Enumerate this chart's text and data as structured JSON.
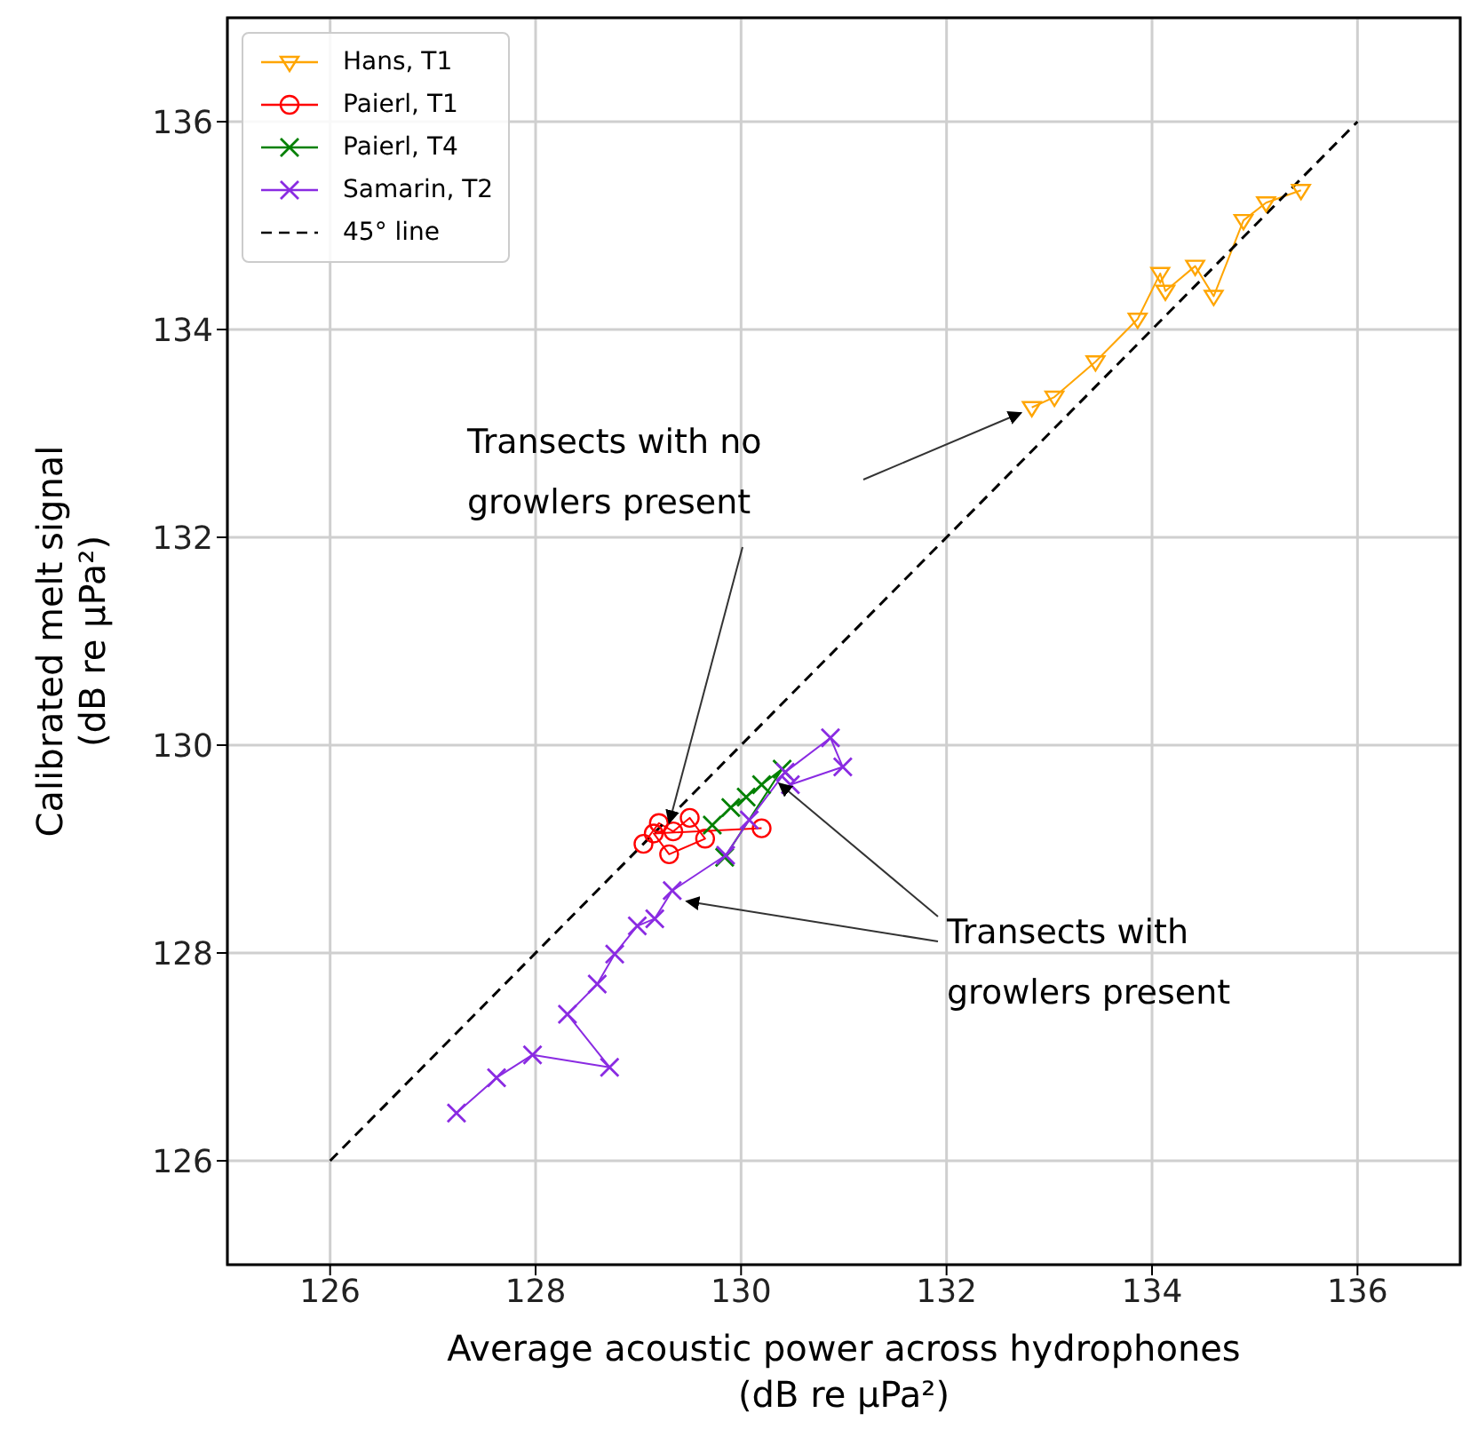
{
  "chart_data": {
    "type": "line",
    "xlabel": "Average acoustic power across hydrophones\n(dB re μPa²)",
    "ylabel": "Calibrated melt signal\n(dB re μPa²)",
    "xlim": [
      125,
      137
    ],
    "ylim": [
      125,
      137
    ],
    "xticks": [
      126,
      128,
      130,
      132,
      134,
      136
    ],
    "yticks": [
      126,
      128,
      130,
      132,
      134,
      136
    ],
    "grid": true,
    "legend": "top left",
    "series": [
      {
        "name": "Hans, T1",
        "color": "#ffa500",
        "marker": "triangle",
        "x": [
          132.83,
          133.05,
          133.45,
          133.86,
          134.08,
          134.13,
          134.42,
          134.6,
          134.89,
          135.11,
          135.45
        ],
        "values": [
          133.25,
          133.35,
          133.69,
          134.1,
          134.54,
          134.37,
          134.61,
          134.32,
          135.05,
          135.22,
          135.34
        ]
      },
      {
        "name": "Paierl, T1",
        "color": "#ff0000",
        "marker": "circle",
        "x": [
          129.05,
          129.2,
          129.34,
          129.5,
          129.65,
          129.3,
          129.15,
          130.2
        ],
        "values": [
          129.05,
          129.25,
          129.17,
          129.3,
          129.1,
          128.95,
          129.15,
          129.2
        ]
      },
      {
        "name": "Paierl, T4",
        "color": "#008000",
        "marker": "cross",
        "x": [
          129.72,
          129.9,
          130.05,
          130.2,
          130.4,
          129.84
        ],
        "values": [
          129.23,
          129.4,
          129.5,
          129.62,
          129.77,
          128.92
        ]
      },
      {
        "name": "Samarin, T2",
        "color": "#8a2be2",
        "marker": "cross",
        "x": [
          127.23,
          127.62,
          127.97,
          128.72,
          128.31,
          128.6,
          128.77,
          128.99,
          129.16,
          129.33,
          129.85,
          130.08,
          130.43,
          130.87,
          130.99,
          130.48
        ],
        "values": [
          126.46,
          126.8,
          127.02,
          126.9,
          127.41,
          127.7,
          127.99,
          128.26,
          128.33,
          128.6,
          128.94,
          129.28,
          129.74,
          130.07,
          129.79,
          129.62
        ]
      },
      {
        "name": "45° line",
        "color": "#000000",
        "marker": "none",
        "line_style": "dashed",
        "x": [
          126,
          136
        ],
        "values": [
          126,
          136
        ]
      }
    ],
    "annotations": [
      {
        "text": "Transects with no growlers present",
        "x": 129.3,
        "y": 129.25
      },
      {
        "text": "Transects with growlers present",
        "x": 130.3,
        "y": 129.7
      }
    ]
  }
}
